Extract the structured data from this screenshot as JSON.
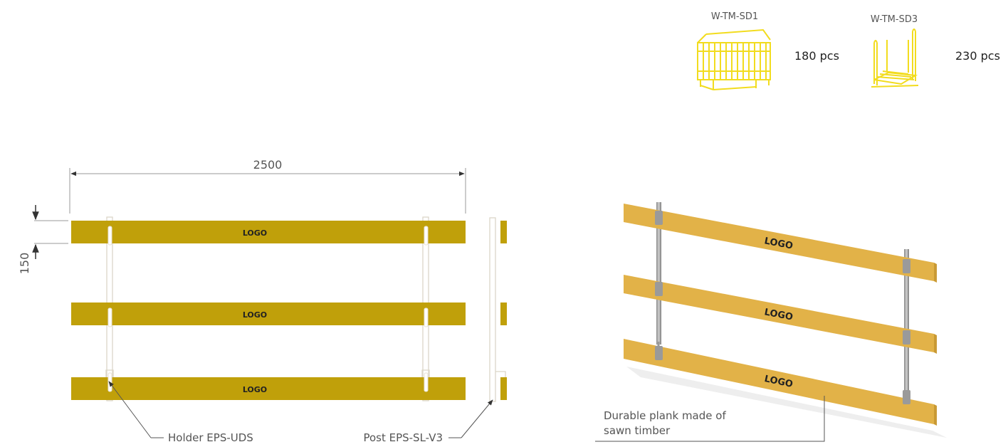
{
  "packaging": {
    "items": [
      {
        "code": "W-TM-SD1",
        "qty": "180 pcs"
      },
      {
        "code": "W-TM-SD3",
        "qty": "230 pcs"
      }
    ]
  },
  "drawing": {
    "width_dim": "2500",
    "height_dim": "150",
    "plank_logo": "LOGO",
    "holder_label": "Holder EPS-UDS",
    "post_label": "Post EPS-SL-V3"
  },
  "render": {
    "plank_logo": "LOGO",
    "plank_label_line1": "Durable plank made of",
    "plank_label_line2": "sawn timber"
  },
  "colors": {
    "plank_drawing": "#C0A00A",
    "plank_render": "#E2B248",
    "crate_yellow": "#F2DC1E"
  }
}
